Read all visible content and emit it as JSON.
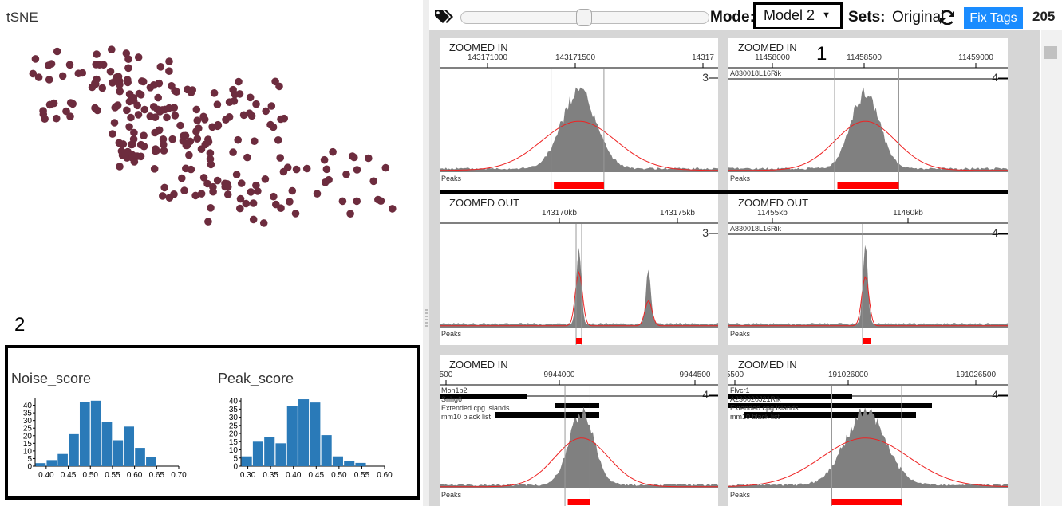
{
  "left": {
    "tsne_title": "tSNE",
    "annotation_2": "2",
    "point_color": "#6d2c3e",
    "histograms": [
      {
        "title": "Noise_score",
        "bar_color": "#2a7ab8",
        "x_ticks": [
          "0.40",
          "0.45",
          "0.50",
          "0.55",
          "0.60",
          "0.65",
          "0.70"
        ],
        "y_ticks": [
          "0",
          "5",
          "10",
          "15",
          "20",
          "25",
          "30",
          "35",
          "40"
        ],
        "x_range": [
          0.375,
          0.7
        ],
        "y_max": 45,
        "bins": [
          [
            0.375,
            0.4,
            2
          ],
          [
            0.4,
            0.425,
            4
          ],
          [
            0.425,
            0.45,
            8
          ],
          [
            0.45,
            0.475,
            21
          ],
          [
            0.475,
            0.5,
            42
          ],
          [
            0.5,
            0.525,
            43
          ],
          [
            0.525,
            0.55,
            29
          ],
          [
            0.55,
            0.575,
            17
          ],
          [
            0.575,
            0.6,
            26
          ],
          [
            0.6,
            0.625,
            12
          ],
          [
            0.625,
            0.65,
            6
          ]
        ]
      },
      {
        "title": "Peak_score",
        "bar_color": "#2a7ab8",
        "x_ticks": [
          "0.30",
          "0.35",
          "0.40",
          "0.45",
          "0.50",
          "0.55",
          "0.60"
        ],
        "y_ticks": [
          "0",
          "5",
          "10",
          "15",
          "20",
          "25",
          "30",
          "35",
          "40"
        ],
        "x_range": [
          0.285,
          0.6
        ],
        "y_max": 42,
        "bins": [
          [
            0.285,
            0.31,
            6
          ],
          [
            0.31,
            0.335,
            15
          ],
          [
            0.335,
            0.36,
            18
          ],
          [
            0.36,
            0.385,
            14
          ],
          [
            0.385,
            0.41,
            37
          ],
          [
            0.41,
            0.435,
            41
          ],
          [
            0.435,
            0.46,
            39
          ],
          [
            0.46,
            0.485,
            19
          ],
          [
            0.485,
            0.51,
            6
          ],
          [
            0.51,
            0.535,
            3
          ],
          [
            0.535,
            0.56,
            2
          ]
        ]
      }
    ]
  },
  "toolbar": {
    "tag_icon": "tag-icon",
    "mode_label": "Mode:",
    "mode_value": "Model 2",
    "mode_caret": "▼",
    "sets_label": "Sets:",
    "sets_value": "Original",
    "refresh_icon": "refresh-icon",
    "fix_tags_label": "Fix Tags",
    "count": "205",
    "annotation_1": "1",
    "accent_color": "#1a8cff"
  },
  "tracks": [
    {
      "title": "ZOOMED IN",
      "ticks": [
        "143171000",
        "143171500",
        "14317"
      ],
      "scale_max": "3",
      "genes": [],
      "peaks_label": "Peaks"
    },
    {
      "title": "ZOOMED IN",
      "ticks": [
        "11458000",
        "11458500",
        "11459000"
      ],
      "scale_max": "4",
      "genes": [
        "A830018L16Rik"
      ],
      "peaks_label": "Peaks"
    },
    {
      "title": "ZOOMED OUT",
      "ticks": [
        "143170kb",
        "143175kb"
      ],
      "scale_max": "3",
      "genes": [],
      "peaks_label": "Peaks"
    },
    {
      "title": "ZOOMED OUT",
      "ticks": [
        "11455kb",
        "11460kb"
      ],
      "scale_max": "4",
      "genes": [
        "A830018L16Rik"
      ],
      "peaks_label": "Peaks"
    },
    {
      "title": "ZOOMED IN",
      "ticks": [
        "500",
        "9944000",
        "9944500"
      ],
      "scale_max": "4",
      "genes": [
        "Mon1b2",
        "Snhg6",
        "Extended cpg islands",
        "mm10 black list"
      ],
      "peaks_label": "Peaks"
    },
    {
      "title": "ZOOMED IN",
      "ticks": [
        "5500",
        "191026000",
        "191026500"
      ],
      "scale_max": "4",
      "genes": [
        "Flvcr1",
        "A230020J21Rik",
        "Extended cpg islands",
        "mm10 black list"
      ],
      "peaks_label": "Peaks"
    }
  ],
  "colors": {
    "signal": "#808080",
    "model_line": "#ee2222",
    "peak_bar": "#ff0000"
  }
}
